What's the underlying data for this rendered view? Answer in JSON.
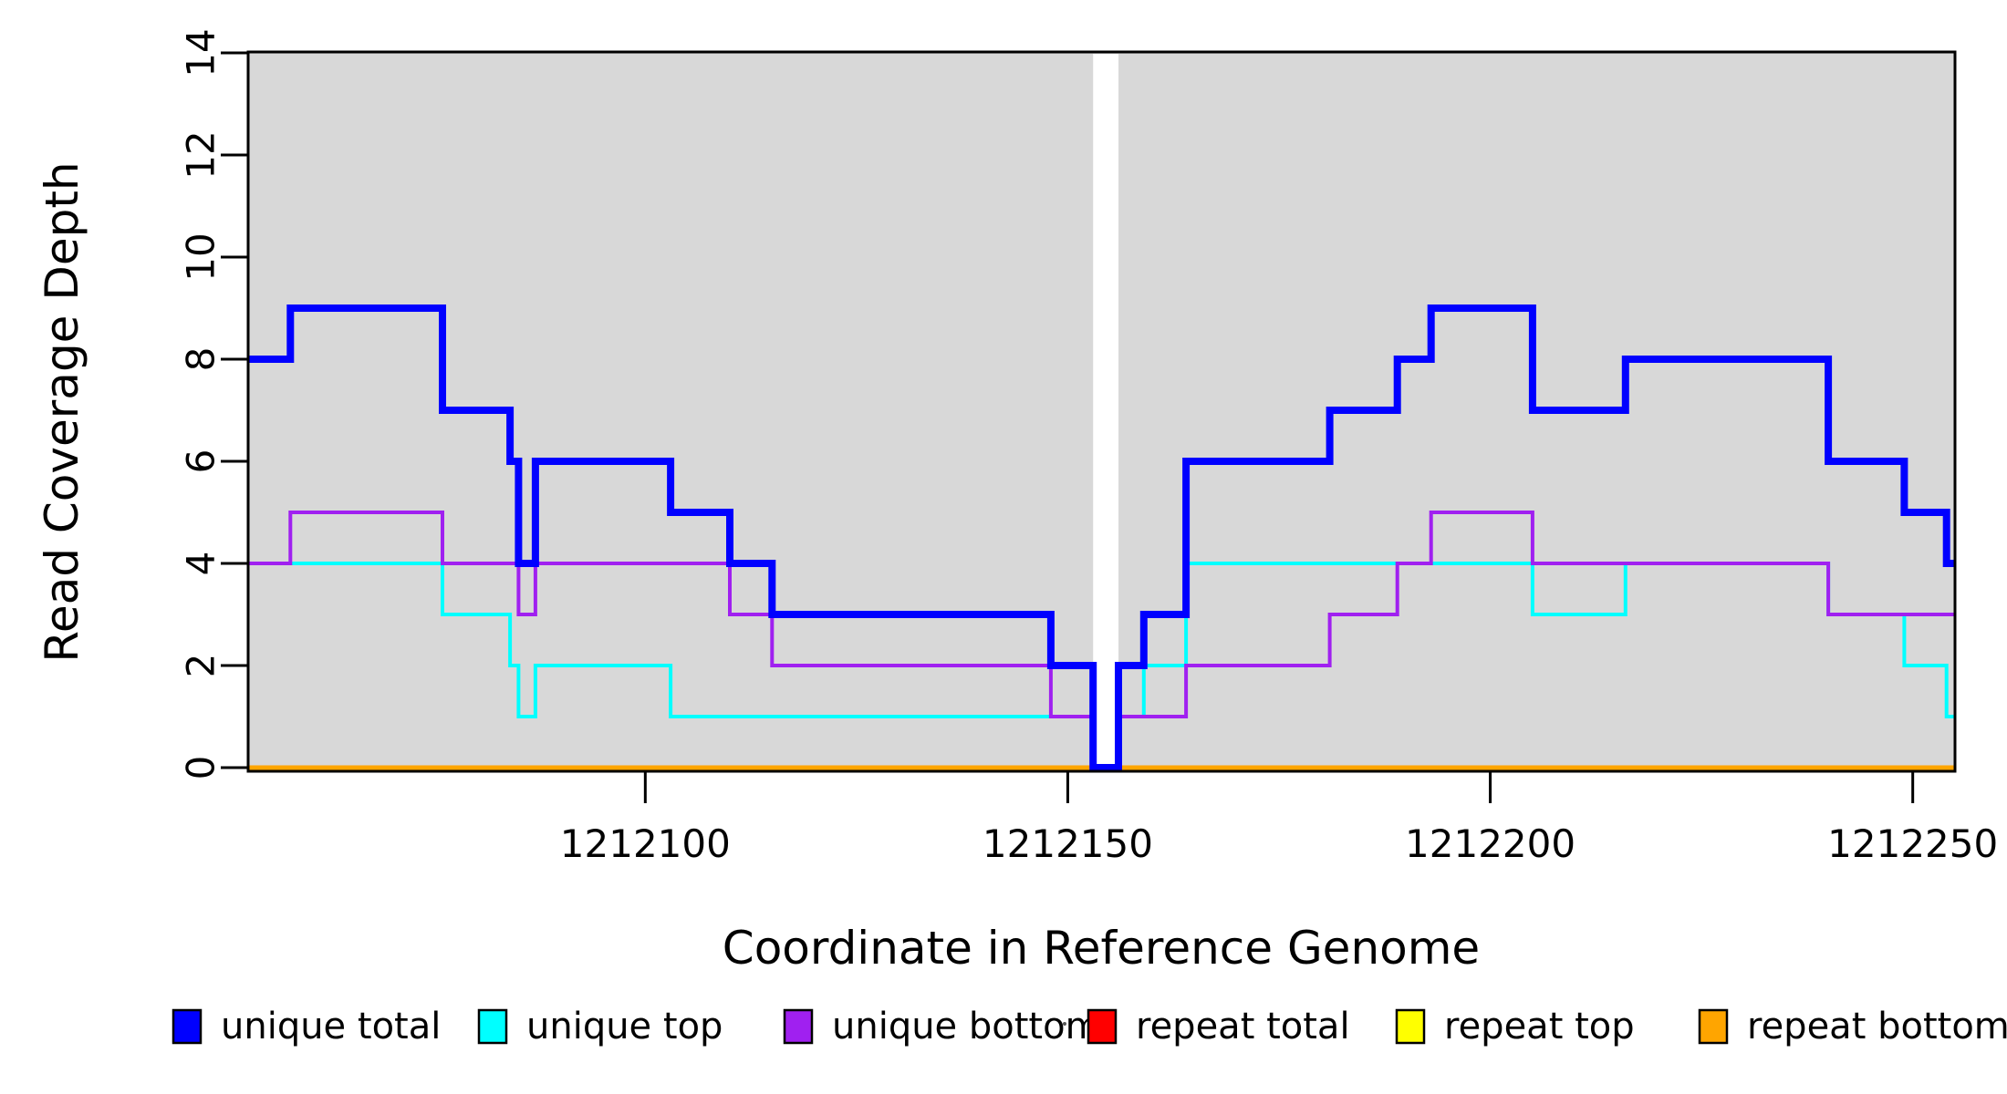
{
  "figure": {
    "background": "#ffffff",
    "plot_background": "#d8d8d8"
  },
  "axes": {
    "x": {
      "label": "Coordinate in Reference Genome",
      "tick_values": [
        1212100,
        1212150,
        1212200,
        1212250
      ],
      "range": [
        1212053,
        1212255
      ]
    },
    "y": {
      "label": "Read Coverage Depth",
      "tick_values": [
        0,
        2,
        4,
        6,
        8,
        10,
        12,
        14
      ],
      "range": [
        0,
        14
      ]
    }
  },
  "coverage_gap": {
    "start": 1212153,
    "end": 1212156
  },
  "chart_data": {
    "type": "line",
    "style": "step-after",
    "title": "",
    "xlabel": "Coordinate in Reference Genome",
    "ylabel": "Read Coverage Depth",
    "xlim": [
      1212053,
      1212255
    ],
    "ylim": [
      0,
      14
    ],
    "grid": false,
    "legend_position": "bottom",
    "x_end": 1212255,
    "series": [
      {
        "name": "unique total",
        "color": "#0000ff",
        "line_width": 8,
        "points": [
          [
            1212053,
            8
          ],
          [
            1212058,
            9
          ],
          [
            1212076,
            7
          ],
          [
            1212084,
            6
          ],
          [
            1212085,
            4
          ],
          [
            1212087,
            6
          ],
          [
            1212103,
            5
          ],
          [
            1212110,
            4
          ],
          [
            1212115,
            3
          ],
          [
            1212148,
            2
          ],
          [
            1212153,
            0
          ],
          [
            1212156,
            2
          ],
          [
            1212159,
            3
          ],
          [
            1212164,
            6
          ],
          [
            1212181,
            7
          ],
          [
            1212189,
            8
          ],
          [
            1212193,
            9
          ],
          [
            1212205,
            7
          ],
          [
            1212216,
            8
          ],
          [
            1212240,
            6
          ],
          [
            1212249,
            5
          ],
          [
            1212254,
            4
          ]
        ]
      },
      {
        "name": "unique top",
        "color": "#00ffff",
        "line_width": 4,
        "points": [
          [
            1212053,
            4
          ],
          [
            1212076,
            3
          ],
          [
            1212084,
            2
          ],
          [
            1212085,
            1
          ],
          [
            1212087,
            2
          ],
          [
            1212103,
            1
          ],
          [
            1212153,
            0
          ],
          [
            1212156,
            1
          ],
          [
            1212159,
            2
          ],
          [
            1212164,
            4
          ],
          [
            1212205,
            3
          ],
          [
            1212216,
            4
          ],
          [
            1212240,
            3
          ],
          [
            1212249,
            2
          ],
          [
            1212254,
            1
          ]
        ]
      },
      {
        "name": "unique bottom",
        "color": "#a020f0",
        "line_width": 4,
        "points": [
          [
            1212053,
            4
          ],
          [
            1212058,
            5
          ],
          [
            1212076,
            4
          ],
          [
            1212085,
            3
          ],
          [
            1212087,
            4
          ],
          [
            1212110,
            3
          ],
          [
            1212115,
            2
          ],
          [
            1212148,
            1
          ],
          [
            1212153,
            0
          ],
          [
            1212156,
            1
          ],
          [
            1212164,
            2
          ],
          [
            1212181,
            3
          ],
          [
            1212189,
            4
          ],
          [
            1212193,
            5
          ],
          [
            1212205,
            4
          ],
          [
            1212240,
            3
          ]
        ]
      },
      {
        "name": "repeat total",
        "color": "#ff0000",
        "line_width": 5,
        "points": [
          [
            1212053,
            0
          ]
        ]
      },
      {
        "name": "repeat top",
        "color": "#ffff00",
        "line_width": 5,
        "points": [
          [
            1212053,
            0
          ]
        ]
      },
      {
        "name": "repeat bottom",
        "color": "#ffa500",
        "line_width": 5,
        "points": [
          [
            1212053,
            0
          ]
        ]
      }
    ]
  },
  "legend": {
    "items": [
      {
        "label": "unique total",
        "color": "#0000ff"
      },
      {
        "label": "unique top",
        "color": "#00ffff"
      },
      {
        "label": "unique bottom",
        "color": "#a020f0"
      },
      {
        "label": "repeat total",
        "color": "#ff0000"
      },
      {
        "label": "repeat top",
        "color": "#ffff00"
      },
      {
        "label": "repeat bottom",
        "color": "#ffa500"
      }
    ]
  }
}
